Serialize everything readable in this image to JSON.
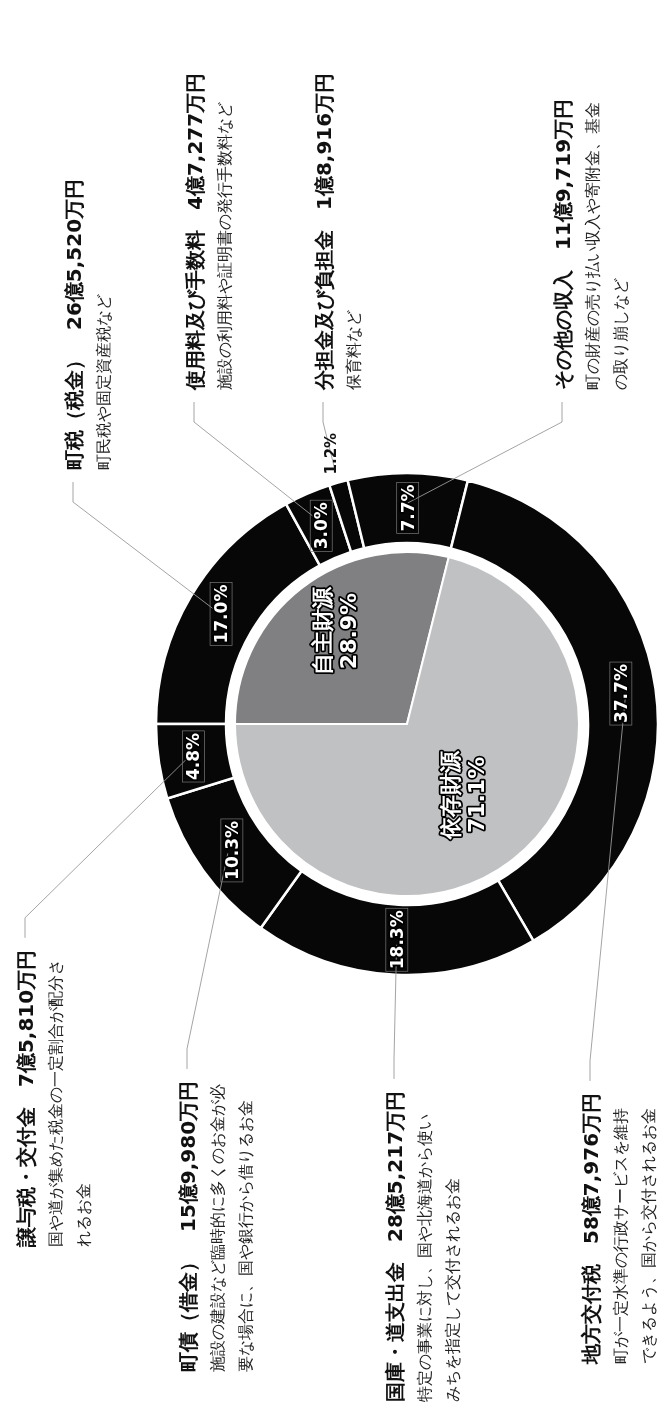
{
  "chart_data": [
    {
      "type": "pie",
      "categories": [
        "自主財源",
        "依存財源"
      ],
      "values": [
        28.9,
        71.1
      ],
      "colors": [
        "#808083",
        "#c0c1c3"
      ],
      "value_labels": [
        "28.9%",
        "71.1%"
      ]
    },
    {
      "type": "donut",
      "categories": [
        "町税（税金）　26億5,520万円",
        "使用料及び手数料　4億7,277万円",
        "分担金及び負担金　1億8,916万円",
        "その他の収入　11億9,719万円",
        "地方交付税　58億7,976万円",
        "国庫・道支出金　28億5,217万円",
        "町債（借金）　15億9,980万円",
        "譲与税・交付金　7億5,810万円"
      ],
      "values": [
        17.0,
        3.0,
        1.2,
        7.7,
        37.7,
        18.3,
        10.3,
        4.8
      ],
      "colors": [
        "#070707",
        "#070707",
        "#070707",
        "#070707",
        "#070707",
        "#070707",
        "#070707",
        "#070707"
      ],
      "value_labels": [
        "17.0%",
        "3.0%",
        "1.2%",
        "7.7%",
        "37.7%",
        "18.3%",
        "10.3%",
        "4.8%"
      ],
      "annotations": [
        "町民税や固定資産税など",
        "施設の利用料や証明書の発行手数料など",
        "保育料など",
        "町の財産の売り払い収入や寄附金、基金の取り崩しなど",
        "町が一定水準の行政サービスを維持できるよう、国から交付されるお金",
        "特定の事業に対し、国や北海道から使いみちを指定して交付されるお金",
        "施設の建設など臨時的に多くのお金が必要な場合に、国や銀行から借りるお金",
        "国や道が集めた税金の一定割合が配分されるお金"
      ]
    }
  ]
}
